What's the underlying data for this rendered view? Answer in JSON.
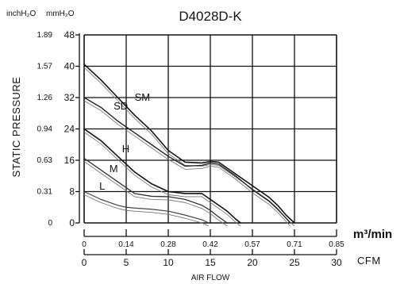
{
  "chart_data": {
    "type": "line",
    "title": "D4028D-K",
    "unit_left_inch": "inchH₂O",
    "unit_left_mm": "mmH₂O",
    "ylabel": "STATIC PRESSURE",
    "xlabel": "AIR FLOW",
    "x_unit_m3": "m³/min",
    "x_unit_cfm": "CFM",
    "x_ticks_m3": [
      "0",
      "0.14",
      "0.28",
      "0.42",
      "0.57",
      "0.71",
      "0.85"
    ],
    "x_ticks_cfm": [
      "0",
      "5",
      "10",
      "15",
      "20",
      "25",
      "30"
    ],
    "y_ticks_mm": [
      "0",
      "8",
      "16",
      "24",
      "32",
      "40",
      "48"
    ],
    "y_ticks_inch": [
      "0",
      "0.31",
      "0.63",
      "0.94",
      "1.26",
      "1.57",
      "1.89"
    ],
    "xlim": [
      0,
      30
    ],
    "ylim": [
      0,
      48
    ],
    "grid": true,
    "series": [
      {
        "name": "SM",
        "x": [
          0,
          2,
          4,
          6,
          8,
          10,
          12,
          14,
          15,
          16,
          18,
          20,
          22,
          23,
          24,
          25
        ],
        "y": [
          40.5,
          36.5,
          32,
          27.5,
          23.5,
          18.5,
          15.5,
          15.3,
          15.7,
          15.5,
          12.5,
          9.5,
          6.5,
          4.5,
          2,
          0
        ]
      },
      {
        "name": "SD",
        "x": [
          0,
          2,
          4,
          6,
          8,
          10,
          12,
          14,
          15,
          16,
          18,
          20,
          22,
          23,
          24,
          24.5
        ],
        "y": [
          32,
          29.5,
          26,
          23,
          20,
          17,
          14.5,
          14.7,
          15.3,
          15,
          12,
          8.5,
          5.5,
          3.5,
          1.2,
          0
        ]
      },
      {
        "name": "H",
        "x": [
          0,
          2,
          4,
          6,
          8,
          10,
          12,
          14,
          15,
          16,
          17,
          18,
          18.6
        ],
        "y": [
          24,
          21,
          17,
          13,
          10,
          8,
          7.5,
          7.5,
          6,
          4.5,
          3,
          1,
          0
        ]
      },
      {
        "name": "M",
        "x": [
          0,
          2,
          4,
          6,
          8,
          10,
          12,
          14,
          15,
          16,
          17
        ],
        "y": [
          16.5,
          13.5,
          10.5,
          7.5,
          6.8,
          6.7,
          6,
          4.5,
          3.2,
          1.5,
          0
        ]
      },
      {
        "name": "L",
        "x": [
          0,
          2,
          4,
          5,
          6,
          8,
          10,
          12,
          14,
          14.8
        ],
        "y": [
          8,
          6,
          4.5,
          4,
          3.8,
          3.5,
          3,
          2,
          0.8,
          0
        ]
      }
    ]
  }
}
